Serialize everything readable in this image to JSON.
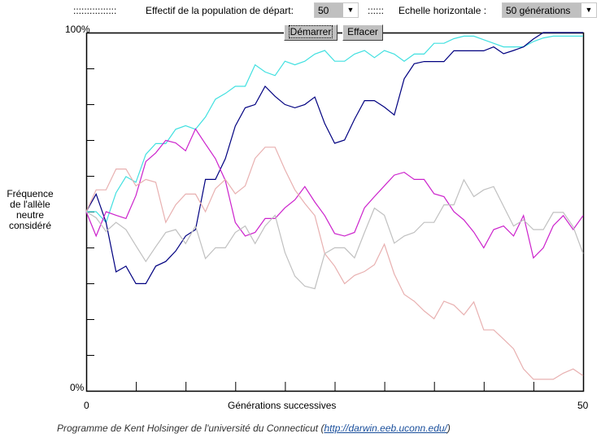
{
  "controls": {
    "leader_1": "::::::::::::::::",
    "population_label": "Effectif de la population de départ:",
    "population_value": "50",
    "leader_2": "::::::",
    "scale_label": "Echelle horizontale :",
    "scale_value": "50 générations",
    "start_label": "Démarrer",
    "clear_label": "Effacer",
    "dropdown_icon": "triangle-down"
  },
  "chart_data": {
    "type": "line",
    "xlabel": "Générations successives",
    "ylabel": [
      "Fréquence",
      "de l'allèle",
      "neutre",
      "considéré"
    ],
    "xlim": [
      0,
      50
    ],
    "ylim": [
      0,
      100
    ],
    "x_tick_labels": [
      "0",
      "50"
    ],
    "y_tick_labels": [
      "100%",
      "0%"
    ],
    "grid": false,
    "series": [
      {
        "color": "#40e0e0",
        "values": [
          50,
          50,
          47,
          55.3,
          59.8,
          58.2,
          66,
          69,
          69,
          73,
          74,
          73,
          76.4,
          81.4,
          83,
          85,
          85,
          91,
          89,
          88,
          92,
          91,
          92,
          94,
          95,
          92,
          92,
          94,
          95,
          93,
          95,
          94,
          92,
          94,
          94,
          97,
          97,
          98.3,
          99,
          99,
          98,
          97,
          96,
          96,
          96,
          97.5,
          98.5,
          99,
          99,
          99,
          99
        ]
      },
      {
        "color": "#000080",
        "values": [
          50,
          54.9,
          47,
          33.2,
          34.8,
          29.9,
          29.9,
          34.8,
          36.1,
          39,
          43.2,
          45,
          59,
          59,
          64.8,
          73.9,
          79,
          79.9,
          85,
          82.2,
          79.9,
          79,
          79.9,
          82,
          74.6,
          69.1,
          70,
          75.8,
          81,
          81,
          79.2,
          77,
          87.1,
          91.3,
          91.9,
          91.9,
          91.9,
          94.9,
          94.9,
          94.9,
          94.9,
          96,
          94.1,
          95,
          96,
          98.2,
          100,
          100,
          100,
          100,
          100
        ]
      },
      {
        "color": "#cc22cc",
        "values": [
          50,
          43.2,
          50,
          49,
          48.1,
          54.5,
          64,
          66.4,
          69.9,
          69.2,
          67,
          73.1,
          68.9,
          64.8,
          58.7,
          47,
          43.2,
          44.2,
          48.1,
          48.1,
          51.1,
          53.3,
          57,
          52.7,
          48.9,
          43.9,
          43.2,
          44.2,
          51.1,
          54.2,
          57.2,
          60.2,
          61,
          59,
          59,
          55,
          54.2,
          50,
          47.7,
          44.3,
          39.9,
          45,
          46,
          43.2,
          48.9,
          37.1,
          39.9,
          46.1,
          48.9,
          45,
          48.9
        ]
      },
      {
        "color": "#e8b0b0",
        "values": [
          50,
          56.1,
          56.1,
          61.9,
          61.9,
          57.2,
          59,
          58.2,
          47,
          51.9,
          54.9,
          54.9,
          50,
          56.4,
          59,
          55,
          57.2,
          64.9,
          68,
          68,
          61.7,
          56.1,
          52.3,
          48.9,
          38.3,
          34.8,
          29.9,
          32.2,
          33.3,
          35.2,
          40.9,
          32.6,
          26.9,
          25,
          22.3,
          20.1,
          25,
          23.9,
          21.2,
          24.8,
          17,
          17,
          14.4,
          11.7,
          6.1,
          3.2,
          3.2,
          3.2,
          4.9,
          6.1,
          4.2
        ]
      },
      {
        "color": "#c0c0c0",
        "values": [
          50,
          48.3,
          44.5,
          47,
          45,
          40.5,
          36.1,
          40.2,
          44.2,
          45,
          41.1,
          46,
          36.9,
          39.9,
          39.9,
          44.2,
          46,
          41.1,
          46,
          49,
          38.6,
          32,
          29.2,
          28.5,
          38.3,
          39.9,
          39.9,
          37.1,
          44.2,
          51,
          49,
          41.2,
          43.2,
          44.2,
          47,
          47,
          51.9,
          51.9,
          58.9,
          54.2,
          56.1,
          57,
          51.5,
          46,
          47.7,
          45,
          45,
          49.8,
          49.8,
          45.8,
          38.3
        ]
      }
    ]
  },
  "footer": {
    "credit": "Programme de Kent Holsinger de l'université du Connecticut (",
    "link": "http://darwin.eeb.uconn.edu/",
    "close": ")"
  }
}
